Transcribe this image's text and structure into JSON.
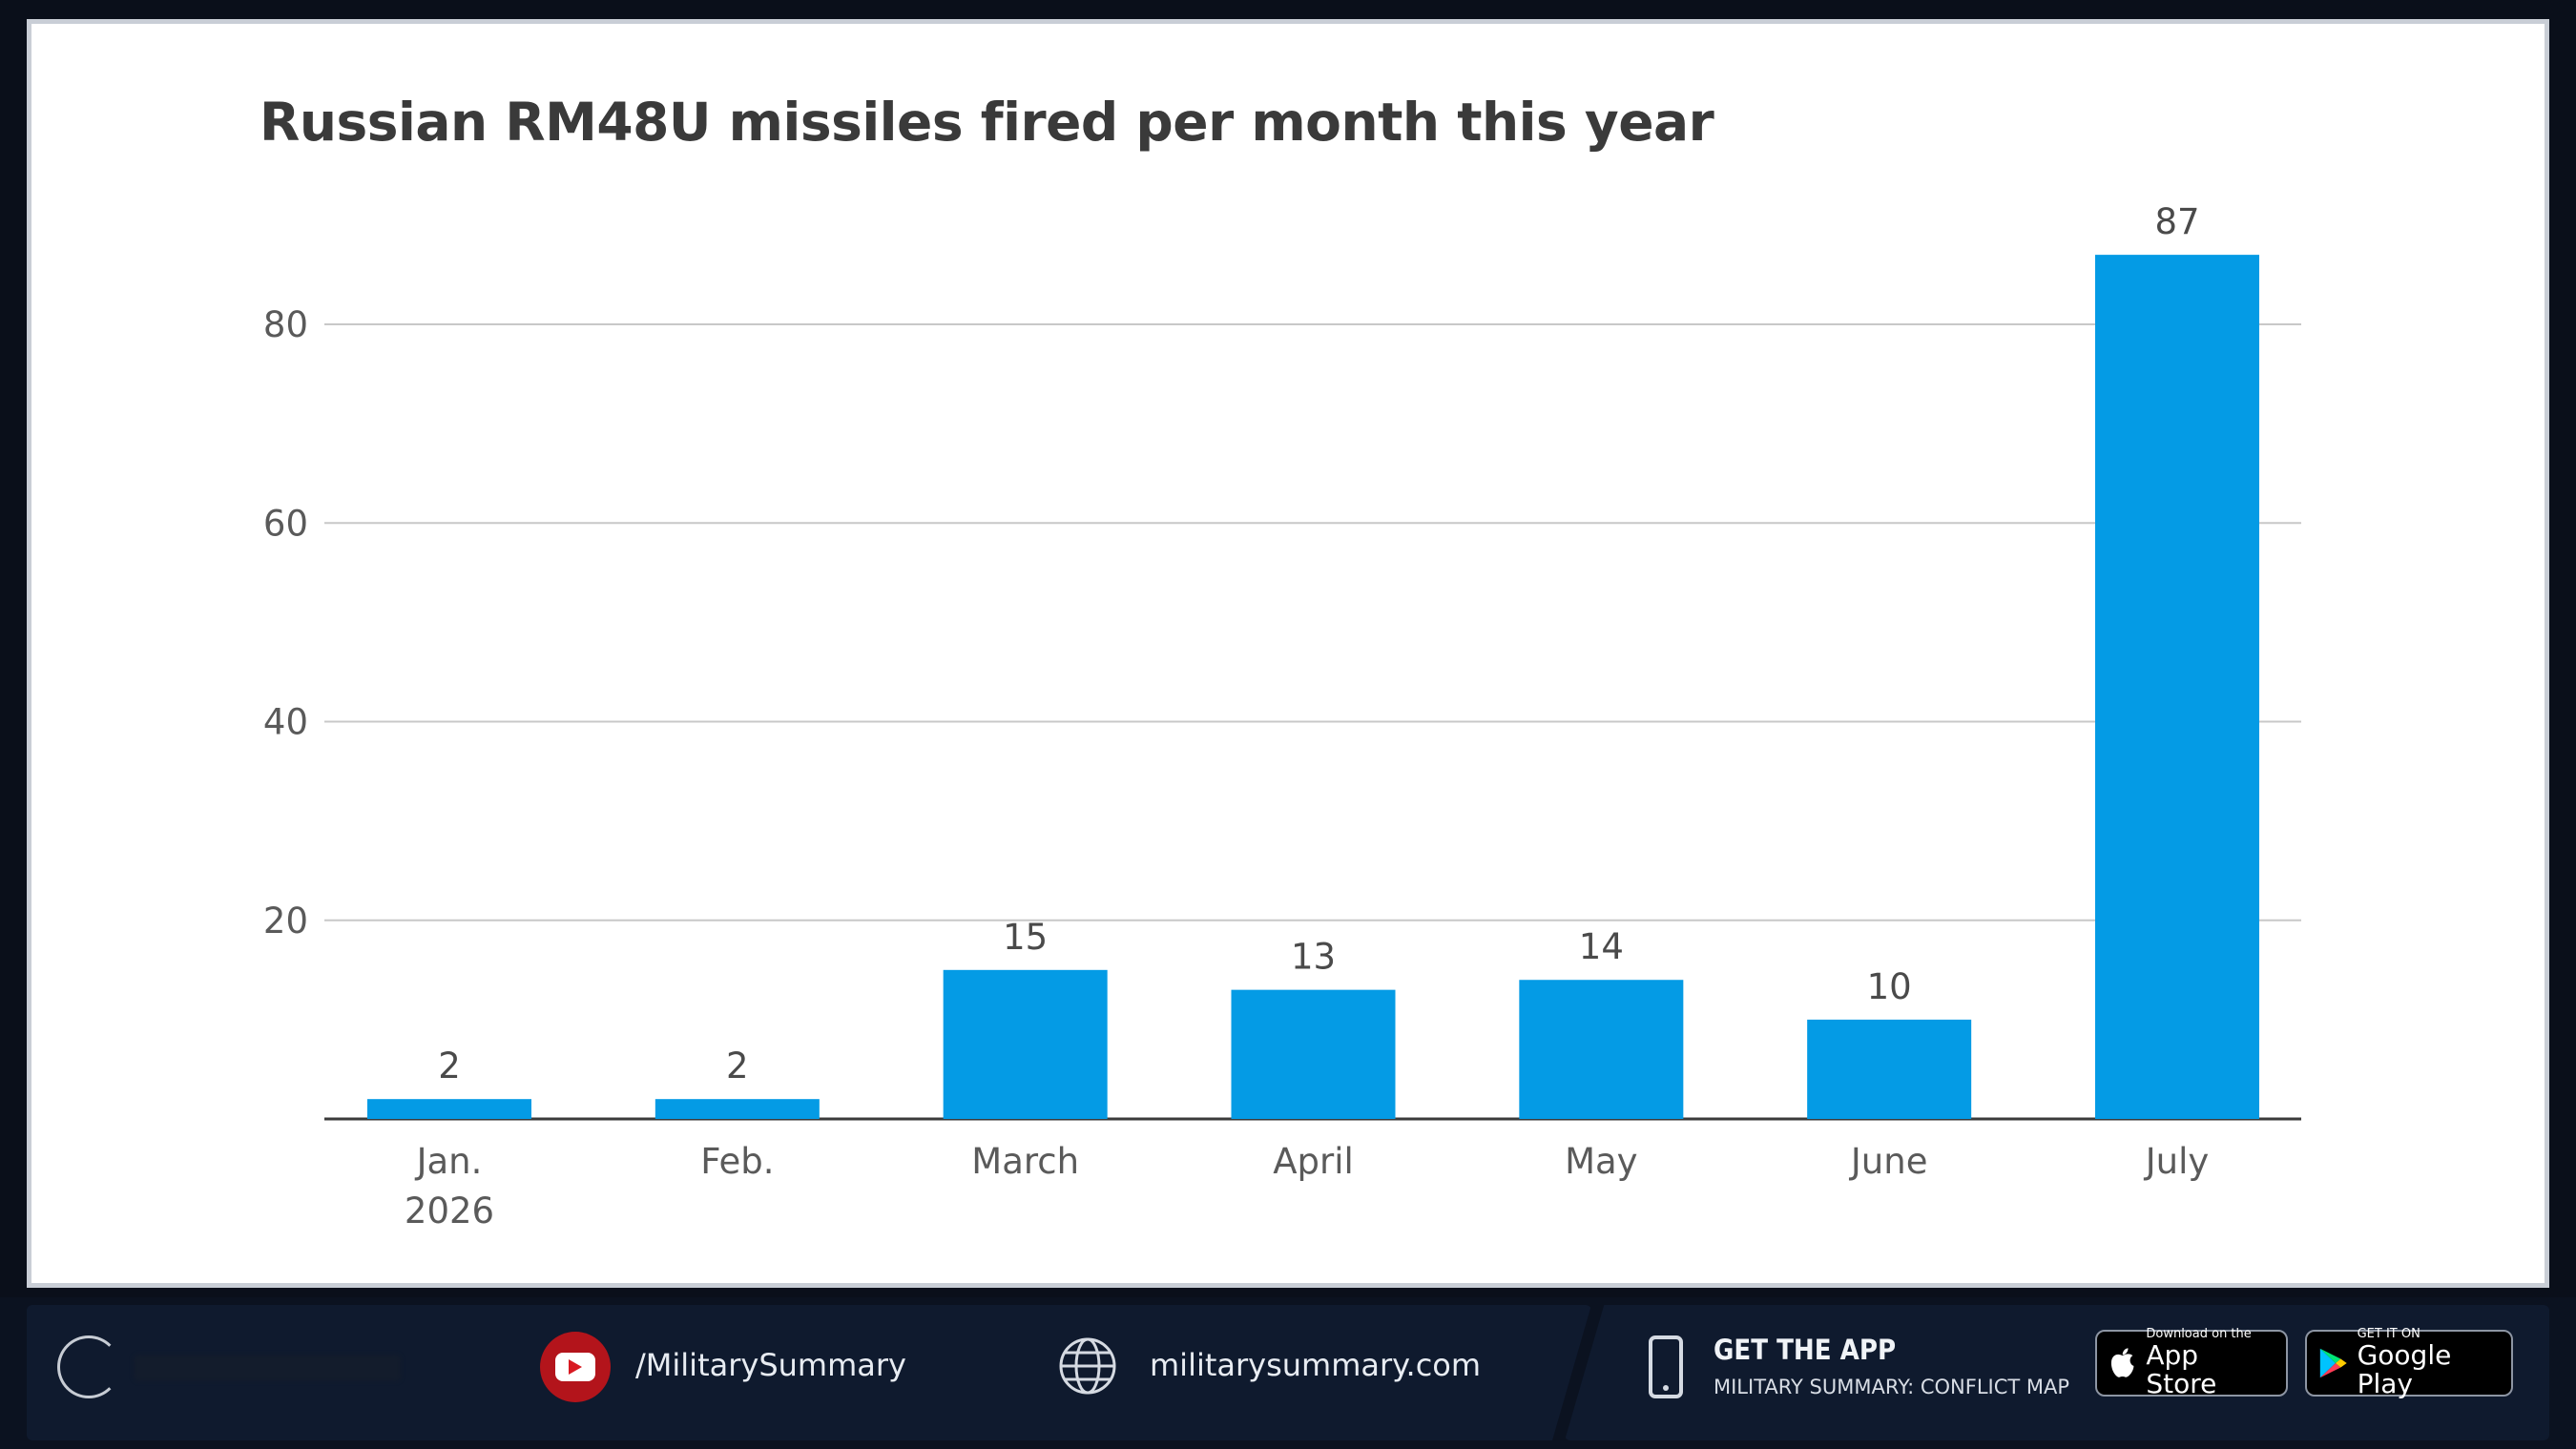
{
  "chart_data": {
    "type": "bar",
    "title": "Russian RM48U missiles fired per month this year",
    "categories": [
      [
        "Jan.",
        "2026"
      ],
      [
        "Feb."
      ],
      [
        "March"
      ],
      [
        "April"
      ],
      [
        "May"
      ],
      [
        "June"
      ],
      [
        "July"
      ]
    ],
    "values": [
      2,
      2,
      15,
      13,
      14,
      10,
      87
    ],
    "data_labels": [
      "2",
      "2",
      "15",
      "13",
      "14",
      "10",
      "87"
    ],
    "ylim": [
      0,
      90
    ],
    "yticks": [
      20,
      40,
      60,
      80
    ],
    "grid": true,
    "bar_color": "#049be5",
    "xlabel": "",
    "ylabel": ""
  },
  "footer": {
    "youtube_handle": "/MilitarySummary",
    "website": "militarysummary.com",
    "app_title": "GET THE APP",
    "app_subtitle": "MILITARY SUMMARY: CONFLICT MAP",
    "appstore_small": "Download on the",
    "appstore_big": "App Store",
    "googleplay_small": "GET IT ON",
    "googleplay_big": "Google Play",
    "icons": [
      "logo-icon",
      "youtube-icon",
      "globe-icon",
      "phone-icon",
      "apple-icon",
      "google-play-icon"
    ]
  }
}
